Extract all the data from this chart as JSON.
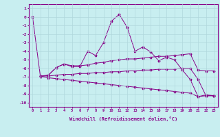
{
  "xlabel": "Windchill (Refroidissement éolien,°C)",
  "background_color": "#c8eef0",
  "grid_color": "#b0d8dc",
  "line_color": "#880088",
  "xlim": [
    -0.5,
    23.5
  ],
  "ylim": [
    -10.5,
    1.5
  ],
  "yticks": [
    1,
    0,
    -1,
    -2,
    -3,
    -4,
    -5,
    -6,
    -7,
    -8,
    -9,
    -10
  ],
  "xticks": [
    0,
    1,
    2,
    3,
    4,
    5,
    6,
    7,
    8,
    9,
    10,
    11,
    12,
    13,
    14,
    15,
    16,
    17,
    18,
    19,
    20,
    21,
    22,
    23
  ],
  "line1_x": [
    0,
    1,
    2,
    3,
    4,
    5,
    6,
    7,
    8,
    9,
    10,
    11,
    12,
    13,
    14,
    15,
    16,
    17,
    18,
    19,
    20,
    21,
    22,
    23
  ],
  "line1_y": [
    0,
    -7,
    -6.8,
    -5.9,
    -5.5,
    -5.8,
    -5.8,
    -4.0,
    -4.5,
    -3.0,
    -0.5,
    0.3,
    -1.2,
    -4.0,
    -3.5,
    -4.1,
    -5.1,
    -4.7,
    -5.0,
    -6.2,
    -7.3,
    -9.3,
    -9.1,
    -9.2
  ],
  "line2_x": [
    1,
    2,
    3,
    4,
    5,
    6,
    7,
    8,
    9,
    10,
    11,
    12,
    13,
    14,
    15,
    16,
    17,
    18,
    19,
    20,
    21,
    22,
    23
  ],
  "line2_y": [
    -6.9,
    -6.8,
    -5.9,
    -5.5,
    -5.7,
    -5.7,
    -5.6,
    -5.4,
    -5.3,
    -5.1,
    -5.0,
    -4.9,
    -4.9,
    -4.8,
    -4.7,
    -4.6,
    -4.6,
    -4.5,
    -4.4,
    -4.3,
    -6.2,
    -6.3,
    -6.3
  ],
  "line3_x": [
    1,
    2,
    3,
    4,
    5,
    6,
    7,
    8,
    9,
    10,
    11,
    12,
    13,
    14,
    15,
    16,
    17,
    18,
    19,
    20,
    21,
    22,
    23
  ],
  "line3_y": [
    -6.9,
    -6.9,
    -6.8,
    -6.7,
    -6.7,
    -6.6,
    -6.6,
    -6.5,
    -6.5,
    -6.4,
    -6.4,
    -6.3,
    -6.3,
    -6.2,
    -6.2,
    -6.1,
    -6.1,
    -6.1,
    -6.0,
    -6.0,
    -7.3,
    -9.2,
    -9.2
  ],
  "line4_x": [
    1,
    2,
    3,
    4,
    5,
    6,
    7,
    8,
    9,
    10,
    11,
    12,
    13,
    14,
    15,
    16,
    17,
    18,
    19,
    20,
    21,
    22,
    23
  ],
  "line4_y": [
    -7.0,
    -7.1,
    -7.2,
    -7.3,
    -7.4,
    -7.5,
    -7.6,
    -7.7,
    -7.8,
    -7.9,
    -8.0,
    -8.1,
    -8.2,
    -8.3,
    -8.4,
    -8.5,
    -8.6,
    -8.7,
    -8.8,
    -8.9,
    -9.3,
    -9.2,
    -9.2
  ]
}
